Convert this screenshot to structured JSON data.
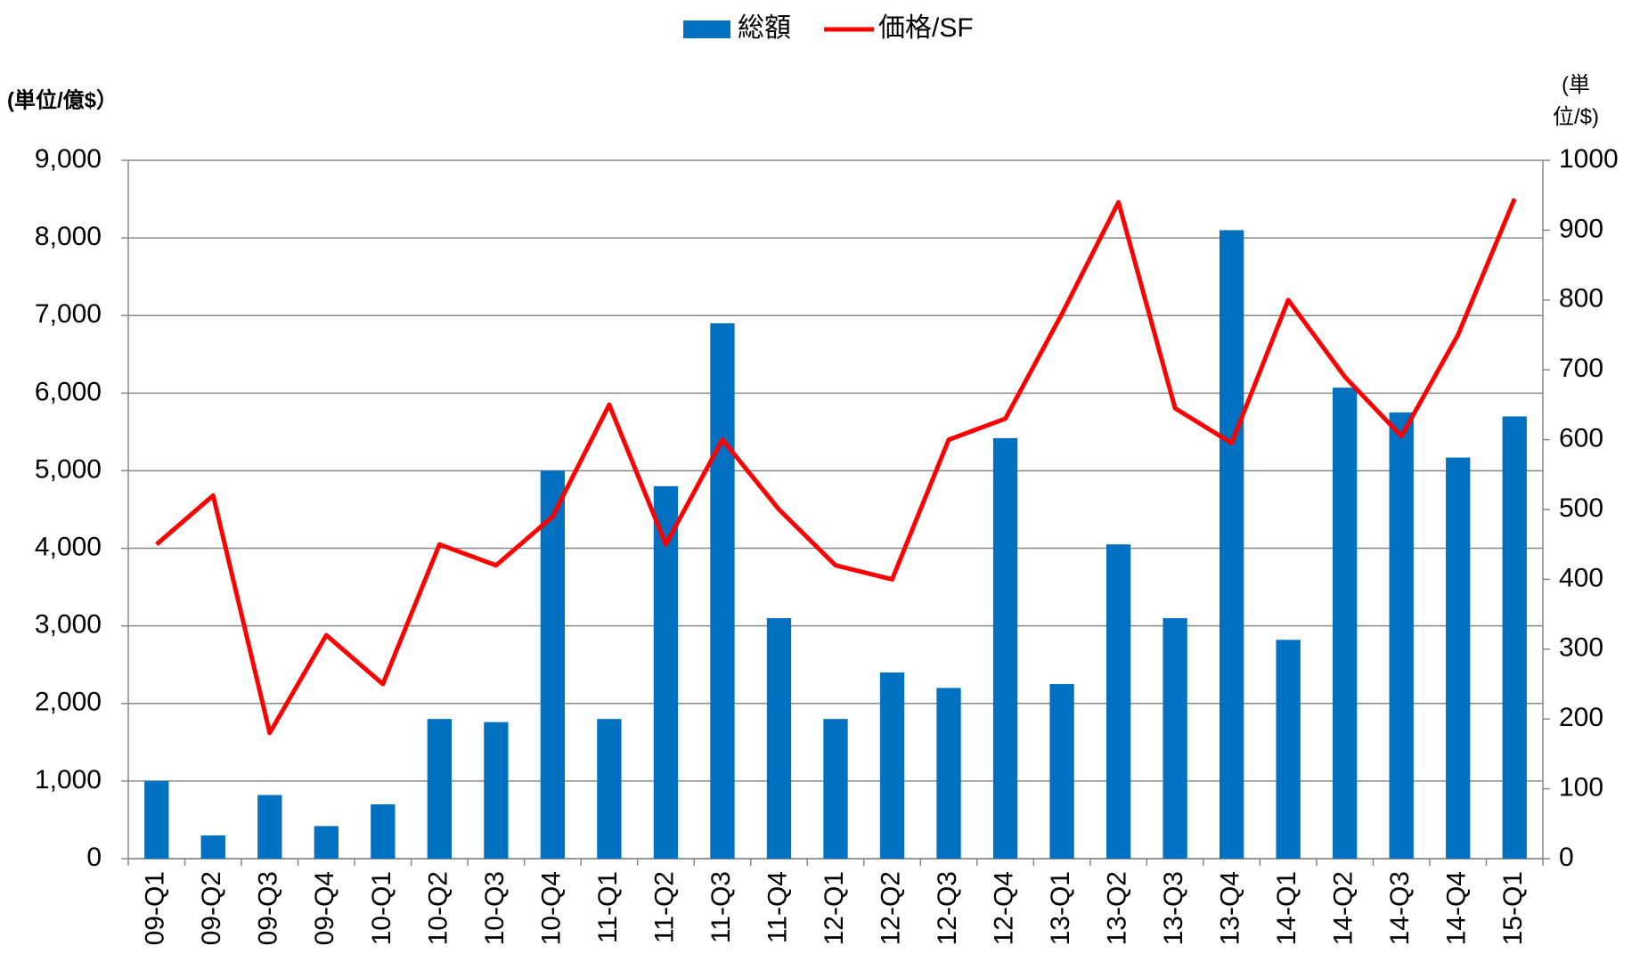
{
  "chart_data": {
    "type": "bar_line",
    "y_label": "(単位/億$）",
    "y2_label": "(単位/$)",
    "categories": [
      "09-Q1",
      "09-Q2",
      "09-Q3",
      "09-Q4",
      "10-Q1",
      "10-Q2",
      "10-Q3",
      "10-Q4",
      "11-Q1",
      "11-Q2",
      "11-Q3",
      "11-Q4",
      "12-Q1",
      "12-Q2",
      "12-Q3",
      "12-Q4",
      "13-Q1",
      "13-Q2",
      "13-Q3",
      "13-Q4",
      "14-Q1",
      "14-Q2",
      "14-Q3",
      "14-Q4",
      "15-Q1"
    ],
    "series": [
      {
        "name": "総額",
        "type": "bar",
        "color": "#0070c0",
        "values": [
          1000,
          300,
          820,
          420,
          700,
          1800,
          1760,
          5000,
          1800,
          4800,
          6900,
          3100,
          1800,
          2400,
          2200,
          5420,
          2250,
          4050,
          3100,
          8100,
          2820,
          6070,
          5750,
          5170,
          5700
        ]
      },
      {
        "name": "価格/SF",
        "type": "line",
        "color": "#ff0000",
        "axis": "y2",
        "values": [
          450,
          520,
          180,
          320,
          250,
          450,
          420,
          490,
          650,
          450,
          600,
          500,
          420,
          400,
          600,
          630,
          780,
          940,
          645,
          595,
          800,
          690,
          605,
          750,
          945
        ]
      }
    ],
    "ylim": [
      0,
      9000
    ],
    "yticks": [
      0,
      {
        "value": 1000,
        "label": "1,000"
      },
      {
        "value": 2000,
        "label": "2,000"
      },
      {
        "value": 3000,
        "label": "3,000"
      },
      {
        "value": 4000,
        "label": "4,000"
      },
      {
        "value": 5000,
        "label": "5,000"
      },
      {
        "value": 6000,
        "label": "6,000"
      },
      {
        "value": 7000,
        "label": "7,000"
      },
      {
        "value": 8000,
        "label": "8,000"
      },
      {
        "value": 9000,
        "label": "9,000"
      }
    ],
    "y2lim": [
      0,
      1000
    ],
    "y2ticks": [
      0,
      100,
      200,
      300,
      400,
      500,
      600,
      700,
      800,
      900,
      1000
    ],
    "grid": true,
    "legend": "top"
  }
}
